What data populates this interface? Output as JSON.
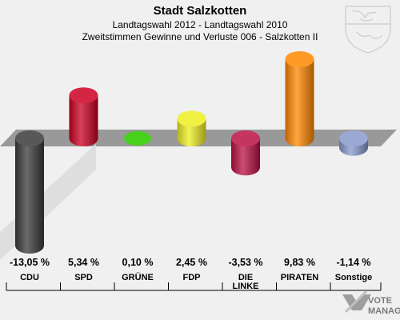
{
  "chart_data": {
    "type": "bar",
    "title": "Stadt Salzkotten",
    "subtitle_line1": "Landtagswahl 2012 - Landtagswahl 2010",
    "subtitle_line2": "Zweitstimmen Gewinne und Verluste 006 - Salzkotten II",
    "categories": [
      "CDU",
      "SPD",
      "GRÜNE",
      "FDP",
      "DIE LINKE",
      "PIRATEN",
      "Sonstige"
    ],
    "values": [
      -13.05,
      5.34,
      0.1,
      2.45,
      -3.53,
      9.83,
      -1.14
    ],
    "value_labels": [
      "-13,05 %",
      "5,34 %",
      "0,10 %",
      "2,45 %",
      "-3,53 %",
      "9,83 %",
      "-1,14 %"
    ],
    "colors": [
      "#3a3a3a",
      "#cc0022",
      "#33cc00",
      "#eeee22",
      "#bb1144",
      "#ff8800",
      "#8899cc"
    ],
    "ylim": [
      -13.05,
      9.83
    ],
    "grid": false,
    "legend": "none"
  },
  "watermark": {
    "line1": "VOTE",
    "line2": "MANAGER",
    "icon": "vote-manager-logo"
  },
  "emblem": {
    "icon": "nrw-coat-of-arms"
  }
}
